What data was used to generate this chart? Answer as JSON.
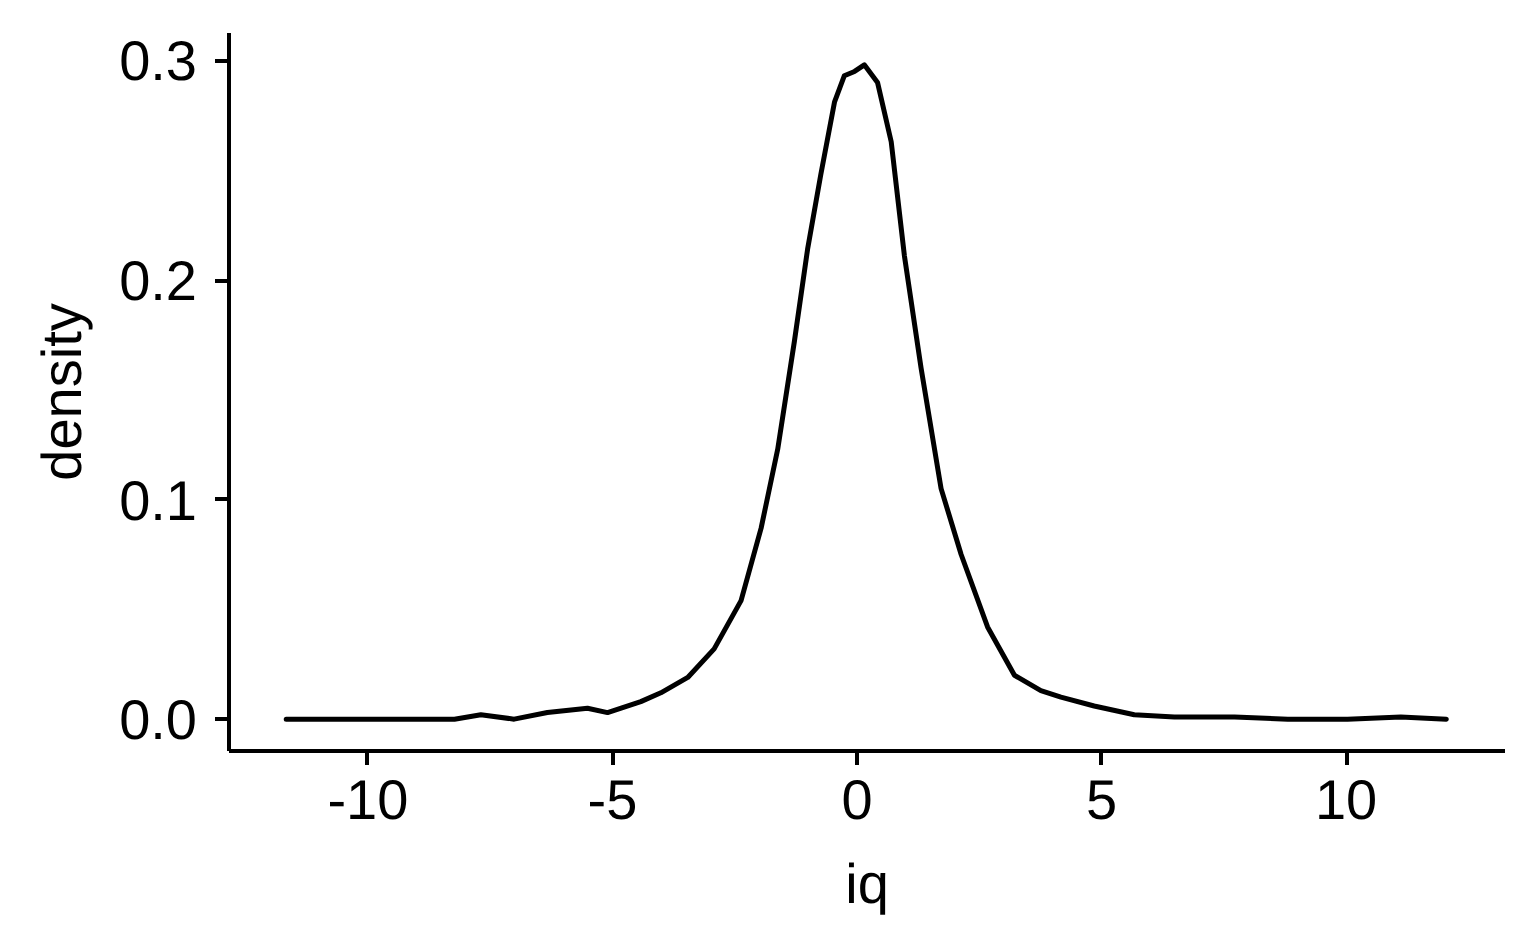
{
  "chart_data": {
    "type": "line",
    "xlabel": "iq",
    "ylabel": "density",
    "color": "#000000",
    "line_style": "solid",
    "x": [
      -11.67,
      -10.69,
      -9.33,
      -8.23,
      -7.69,
      -7.01,
      -6.33,
      -5.51,
      -5.1,
      -4.42,
      -4.01,
      -3.46,
      -2.92,
      -2.37,
      -1.96,
      -1.62,
      -1.28,
      -1.01,
      -0.74,
      -0.46,
      -0.26,
      -0.05,
      0.15,
      0.42,
      0.7,
      0.97,
      1.31,
      1.72,
      2.13,
      2.67,
      3.22,
      3.76,
      4.17,
      4.85,
      5.67,
      6.49,
      7.72,
      8.81,
      10.03,
      11.12,
      12.05
    ],
    "values": [
      0.0,
      0.0,
      0.0,
      0.0,
      0.002,
      0.0,
      0.003,
      0.005,
      0.003,
      0.008,
      0.012,
      0.019,
      0.032,
      0.054,
      0.087,
      0.123,
      0.172,
      0.214,
      0.248,
      0.281,
      0.293,
      0.295,
      0.298,
      0.29,
      0.263,
      0.211,
      0.16,
      0.105,
      0.075,
      0.042,
      0.02,
      0.013,
      0.01,
      0.006,
      0.002,
      0.001,
      0.001,
      0.0,
      0.0,
      0.001,
      0.0
    ],
    "xlim": [
      -12.84,
      13.25
    ],
    "ylim": [
      -0.0145,
      0.3125
    ],
    "xticks": [
      -10,
      -5,
      0,
      5,
      10
    ],
    "yticks": [
      {
        "value": 0,
        "label": "0.0"
      },
      0.1,
      0.2,
      0.3
    ]
  }
}
